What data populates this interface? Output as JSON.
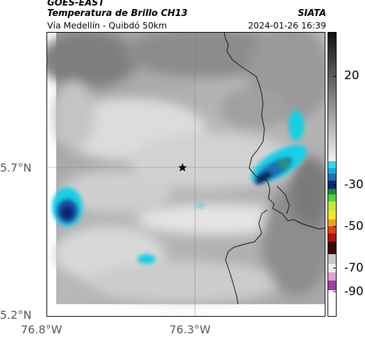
{
  "header": {
    "satellite": "GOES-EAST",
    "product": "Temperatura de Brillo CH13",
    "organization": "SIATA",
    "region": "Vía Medellín - Quibdó 50km",
    "timestamp": "2024-01-26 16:39"
  },
  "map": {
    "lat_ticks": [
      "5.7°N",
      "5.2°N"
    ],
    "lon_ticks": [
      "76.8°W",
      "76.3°W"
    ],
    "marker": "star-icon",
    "colors": {
      "cold_cloud": "#19d0e6",
      "core": "#1e4fa8",
      "deep_core": "#0b2870",
      "warm_background": "#b4b4b4"
    }
  },
  "colorbar": {
    "tick_labels": [
      "20",
      "-30",
      "-50",
      "-70",
      "-90"
    ]
  }
}
